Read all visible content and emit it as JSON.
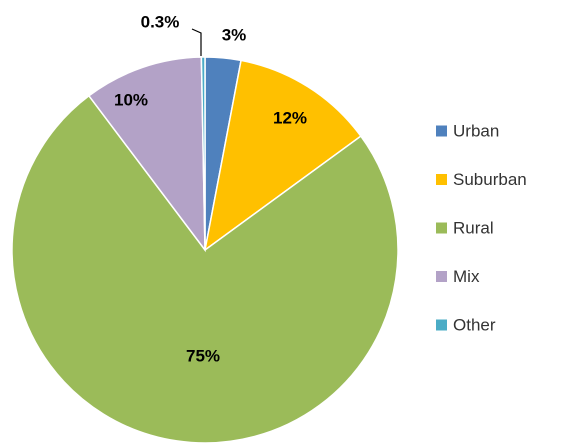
{
  "chart_data": {
    "type": "pie",
    "categories": [
      "Urban",
      "Suburban",
      "Rural",
      "Mix",
      "Other"
    ],
    "values": [
      3,
      12,
      75,
      10,
      0.3
    ],
    "value_labels": [
      "3%",
      "12%",
      "75%",
      "10%",
      "0.3%"
    ],
    "colors": [
      "#4f81bd",
      "#ffc000",
      "#9bbb59",
      "#b3a2c7",
      "#4bacc6"
    ],
    "legend": "right"
  }
}
